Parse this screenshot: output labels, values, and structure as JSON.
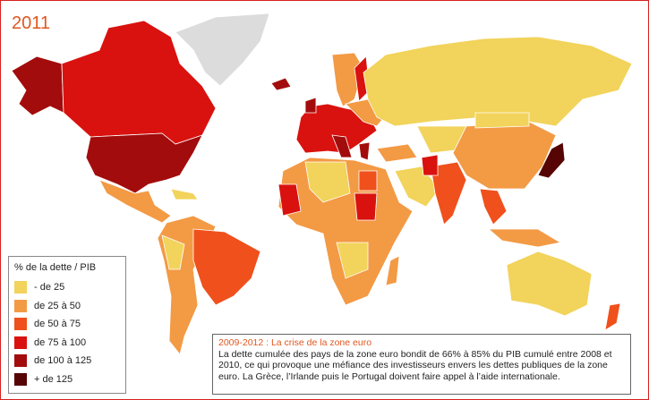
{
  "header": {
    "title": "2011"
  },
  "legend": {
    "title": "% de la dette / PIB",
    "items": [
      {
        "label": "- de 25",
        "color": "#f2d35b"
      },
      {
        "label": "de 25 à 50",
        "color": "#f39a45"
      },
      {
        "label": "de 50 à 75",
        "color": "#f0501c"
      },
      {
        "label": "de 75 à 100",
        "color": "#d9120f"
      },
      {
        "label": "de 100 à 125",
        "color": "#a30c0c"
      },
      {
        "label": "+ de 125",
        "color": "#560404"
      }
    ]
  },
  "info": {
    "title": "2009-2012 : La crise de la zone euro",
    "text": "La dette cumulée des pays de la zone euro bondit de 66% à 85% du PIB cumulé entre 2008 et 2010, ce qui provoque une méfiance des investisseurs envers les dettes publiques de la zone euro. La Grèce, l’Irlande puis le Portugal doivent faire appel à l’aide internationale."
  }
}
